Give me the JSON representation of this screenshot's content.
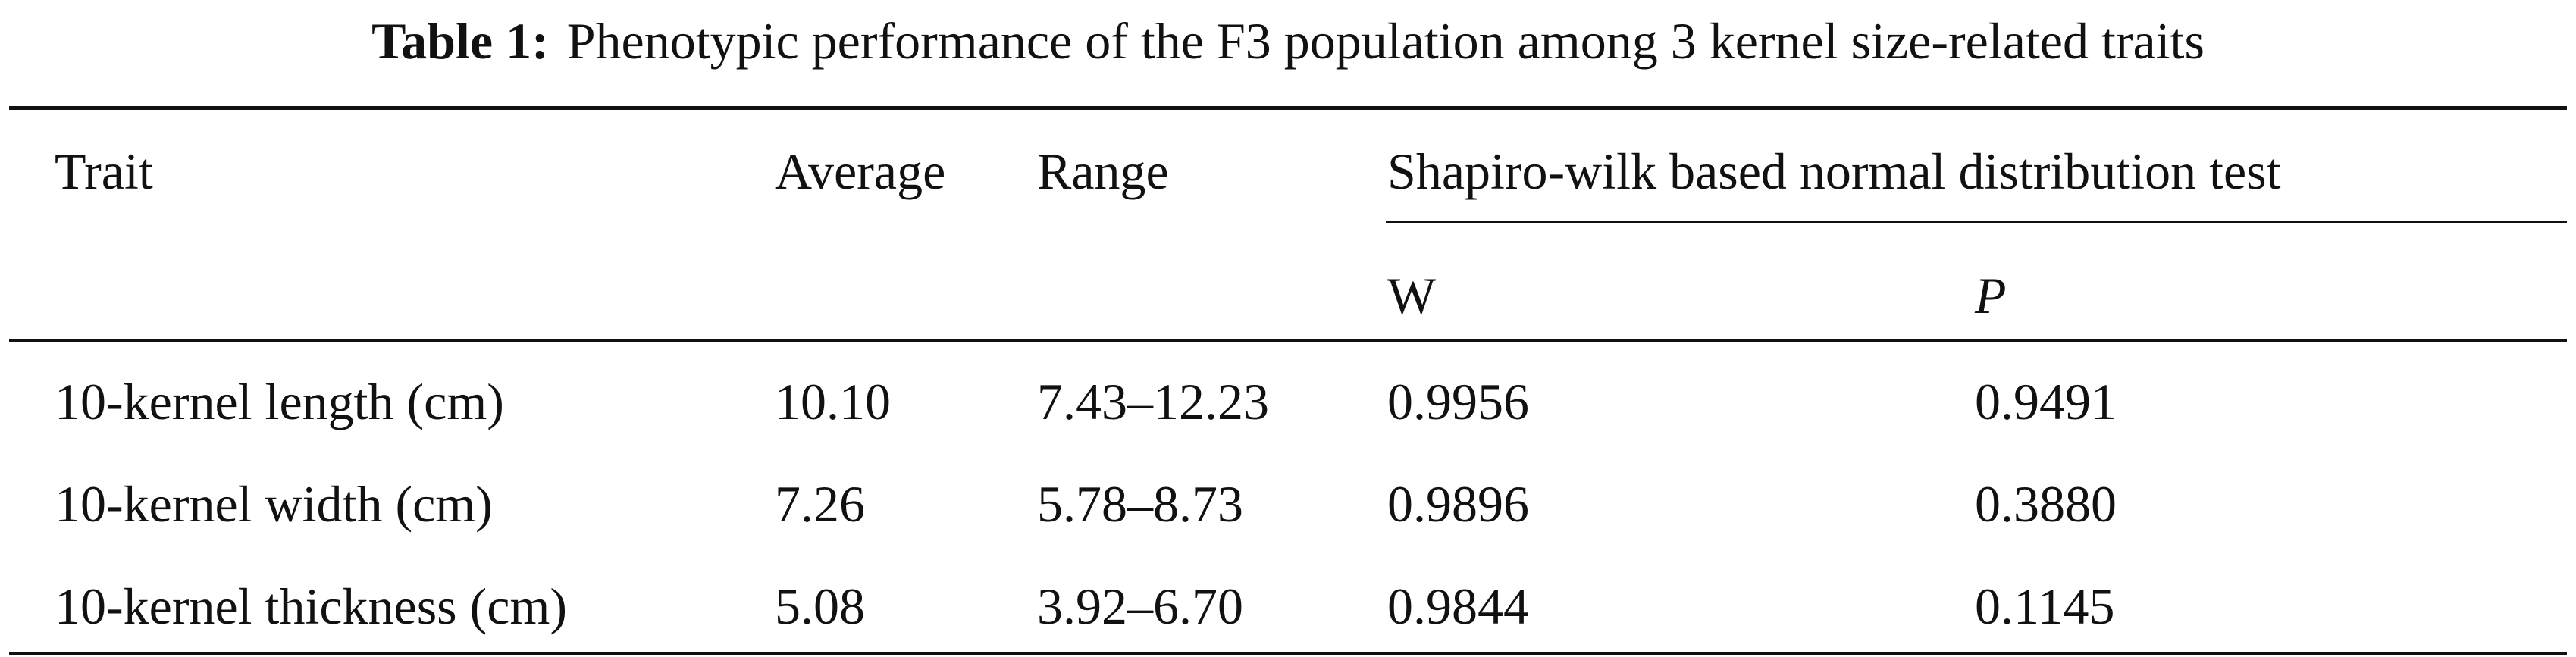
{
  "table": {
    "caption_label": "Table 1:",
    "caption_text": "Phenotypic performance of the F3 population among 3 kernel size-related traits",
    "headers": {
      "trait": "Trait",
      "average": "Average",
      "range": "Range",
      "group": "Shapiro-wilk based normal distribution test",
      "w": "W",
      "p": "P"
    },
    "rows": [
      {
        "trait": "10-kernel length (cm)",
        "average": "10.10",
        "range": "7.43–12.23",
        "w": "0.9956",
        "p": "0.9491"
      },
      {
        "trait": "10-kernel width (cm)",
        "average": "7.26",
        "range": "5.78–8.73",
        "w": "0.9896",
        "p": "0.3880"
      },
      {
        "trait": "10-kernel thickness (cm)",
        "average": "5.08",
        "range": "3.92–6.70",
        "w": "0.9844",
        "p": "0.1145"
      }
    ]
  }
}
